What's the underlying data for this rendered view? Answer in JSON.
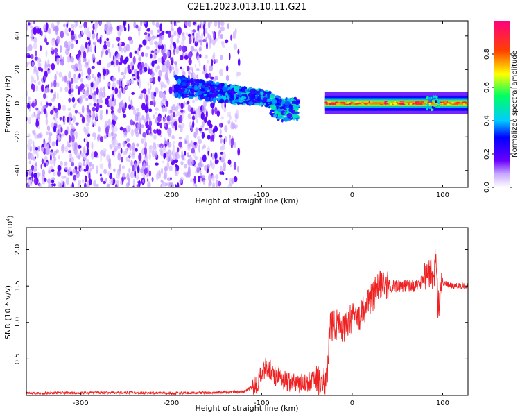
{
  "title": "C2E1.2023.013.10.11.G21",
  "colors": {
    "snr_line": "#ee2222",
    "specgram_low": "#6a00ff",
    "specgram_high": "#ff0040"
  },
  "chart_data": [
    {
      "type": "heatmap",
      "name": "spectrogram",
      "xlabel": "Height of straight line (km)",
      "ylabel": "Frequency (Hz)",
      "xlim": [
        -360,
        128
      ],
      "ylim": [
        -50,
        49
      ],
      "xticks": [
        -300,
        -200,
        -100,
        0,
        100
      ],
      "yticks": [
        -40,
        -20,
        0,
        20,
        40
      ],
      "colorbar": {
        "label": "Normalized spectral amplitude",
        "range": [
          0.0,
          1.0
        ],
        "ticks": [
          0.0,
          0.2,
          0.4,
          0.6,
          0.8
        ],
        "colormap": "rainbow (purple → blue → cyan → green → yellow → red → pink)"
      },
      "features": [
        {
          "description": "broadband noise",
          "x_range": [
            -360,
            -125
          ],
          "freq_range": [
            -50,
            49
          ],
          "amplitude": [
            0.0,
            0.15
          ]
        },
        {
          "description": "emerging signal",
          "x_range": [
            -195,
            -60
          ],
          "freq_center": [
            10,
            0
          ],
          "amplitude": [
            0.2,
            0.5
          ]
        },
        {
          "description": "narrow tone",
          "x_range": [
            -30,
            128
          ],
          "freq_center": [
            0,
            0
          ],
          "amplitude": [
            0.6,
            1.0
          ]
        }
      ]
    },
    {
      "type": "line",
      "name": "snr",
      "xlabel": "Height of straight line (km)",
      "ylabel": "SNR (10 * v/v)",
      "y_multiplier": "(x10⁴)",
      "y_multiplier_base": "(x10",
      "y_multiplier_exp": "4",
      "y_multiplier_close": ")",
      "xlim": [
        -360,
        128
      ],
      "ylim": [
        0,
        23000
      ],
      "xticks": [
        -300,
        -200,
        -100,
        0,
        100
      ],
      "yticks": [
        5000,
        10000,
        15000,
        20000
      ],
      "ytick_labels": [
        "0.5",
        "1.0",
        "1.5",
        "2.0"
      ],
      "series": [
        {
          "x": [
            -360,
            -250,
            -200,
            -150,
            -120,
            -105,
            -100,
            -95,
            -90,
            -85,
            -80,
            -75,
            -70,
            -65,
            -60,
            -55,
            -50,
            -45,
            -40,
            -35,
            -30,
            -27,
            -25,
            -20,
            -15,
            -10,
            -5,
            0,
            5,
            10,
            15,
            20,
            25,
            30,
            40,
            50,
            60,
            70,
            80,
            85,
            90,
            92,
            95,
            100,
            110,
            128
          ],
          "y": [
            300,
            400,
            300,
            400,
            500,
            1500,
            3000,
            4000,
            3500,
            2500,
            3000,
            2000,
            1800,
            1700,
            1800,
            1800,
            1700,
            2000,
            2000,
            1800,
            2000,
            4000,
            9000,
            10000,
            9500,
            9000,
            10000,
            10500,
            10500,
            11000,
            12000,
            13000,
            14000,
            15000,
            15000,
            15000,
            15000,
            15000,
            16000,
            17000,
            16000,
            19000,
            12000,
            15500,
            15000,
            15000
          ]
        }
      ]
    }
  ]
}
